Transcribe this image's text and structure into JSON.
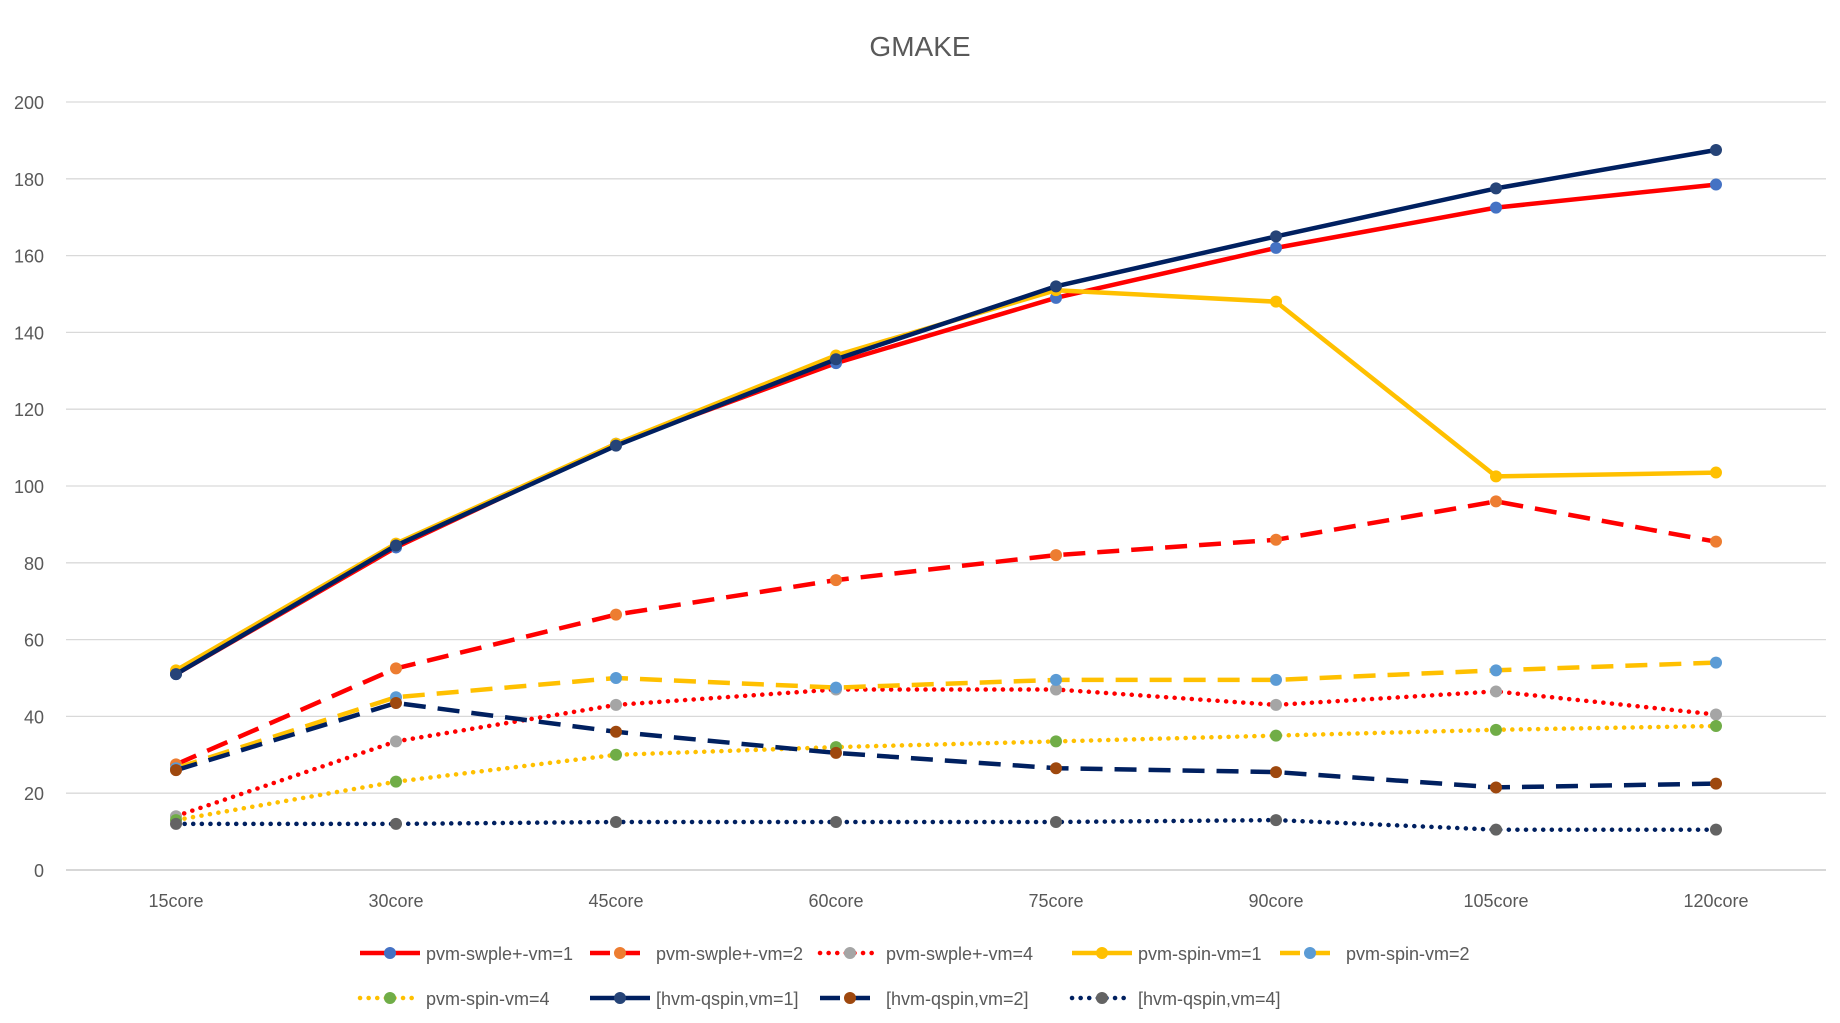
{
  "chart_data": {
    "type": "line",
    "title": "GMAKE",
    "categories": [
      "15core",
      "30core",
      "45core",
      "60core",
      "75core",
      "90core",
      "105core",
      "120core"
    ],
    "ylim": [
      0,
      200
    ],
    "yticks": [
      0,
      20,
      40,
      60,
      80,
      100,
      120,
      140,
      160,
      180,
      200
    ],
    "grid": true,
    "legend_position": "bottom",
    "series": [
      {
        "name": "pvm-swple+-vm=1",
        "values": [
          51,
          84,
          111,
          132,
          149,
          162,
          172.5,
          178.5
        ],
        "color": "#ff0000",
        "dash": "solid",
        "marker_color": "#4472c4"
      },
      {
        "name": "pvm-swple+-vm=2",
        "values": [
          27.5,
          52.5,
          66.5,
          75.5,
          82,
          86,
          96,
          85.5
        ],
        "color": "#ff0000",
        "dash": "dash",
        "marker_color": "#ed7d31"
      },
      {
        "name": "pvm-swple+-vm=4",
        "values": [
          14,
          33.5,
          43,
          47,
          47,
          43,
          46.5,
          40.5
        ],
        "color": "#ff0000",
        "dash": "dot",
        "marker_color": "#a5a5a5"
      },
      {
        "name": "pvm-spin-vm=1",
        "values": [
          52,
          85,
          111,
          134,
          151,
          148,
          102.5,
          103.5
        ],
        "color": "#ffc000",
        "dash": "solid",
        "marker_color": "#ffc000"
      },
      {
        "name": "pvm-spin-vm=2",
        "values": [
          26.5,
          45,
          50,
          47.5,
          49.5,
          49.5,
          52,
          54
        ],
        "color": "#ffc000",
        "dash": "dash",
        "marker_color": "#5b9bd5"
      },
      {
        "name": "pvm-spin-vm=4",
        "values": [
          13,
          23,
          30,
          32,
          33.5,
          35,
          36.5,
          37.5
        ],
        "color": "#ffc000",
        "dash": "dot",
        "marker_color": "#70ad47"
      },
      {
        "name": "[hvm-qspin,vm=1]",
        "values": [
          51,
          84.5,
          110.5,
          133,
          152,
          165,
          177.5,
          187.5
        ],
        "color": "#002060",
        "dash": "solid",
        "marker_color": "#264478"
      },
      {
        "name": "[hvm-qspin,vm=2]",
        "values": [
          26,
          43.5,
          36,
          30.5,
          26.5,
          25.5,
          21.5,
          22.5
        ],
        "color": "#002060",
        "dash": "dash",
        "marker_color": "#9e480e"
      },
      {
        "name": "[hvm-qspin,vm=4]",
        "values": [
          12,
          12,
          12.5,
          12.5,
          12.5,
          13,
          10.5,
          10.5
        ],
        "color": "#002060",
        "dash": "dot",
        "marker_color": "#636363"
      }
    ]
  }
}
